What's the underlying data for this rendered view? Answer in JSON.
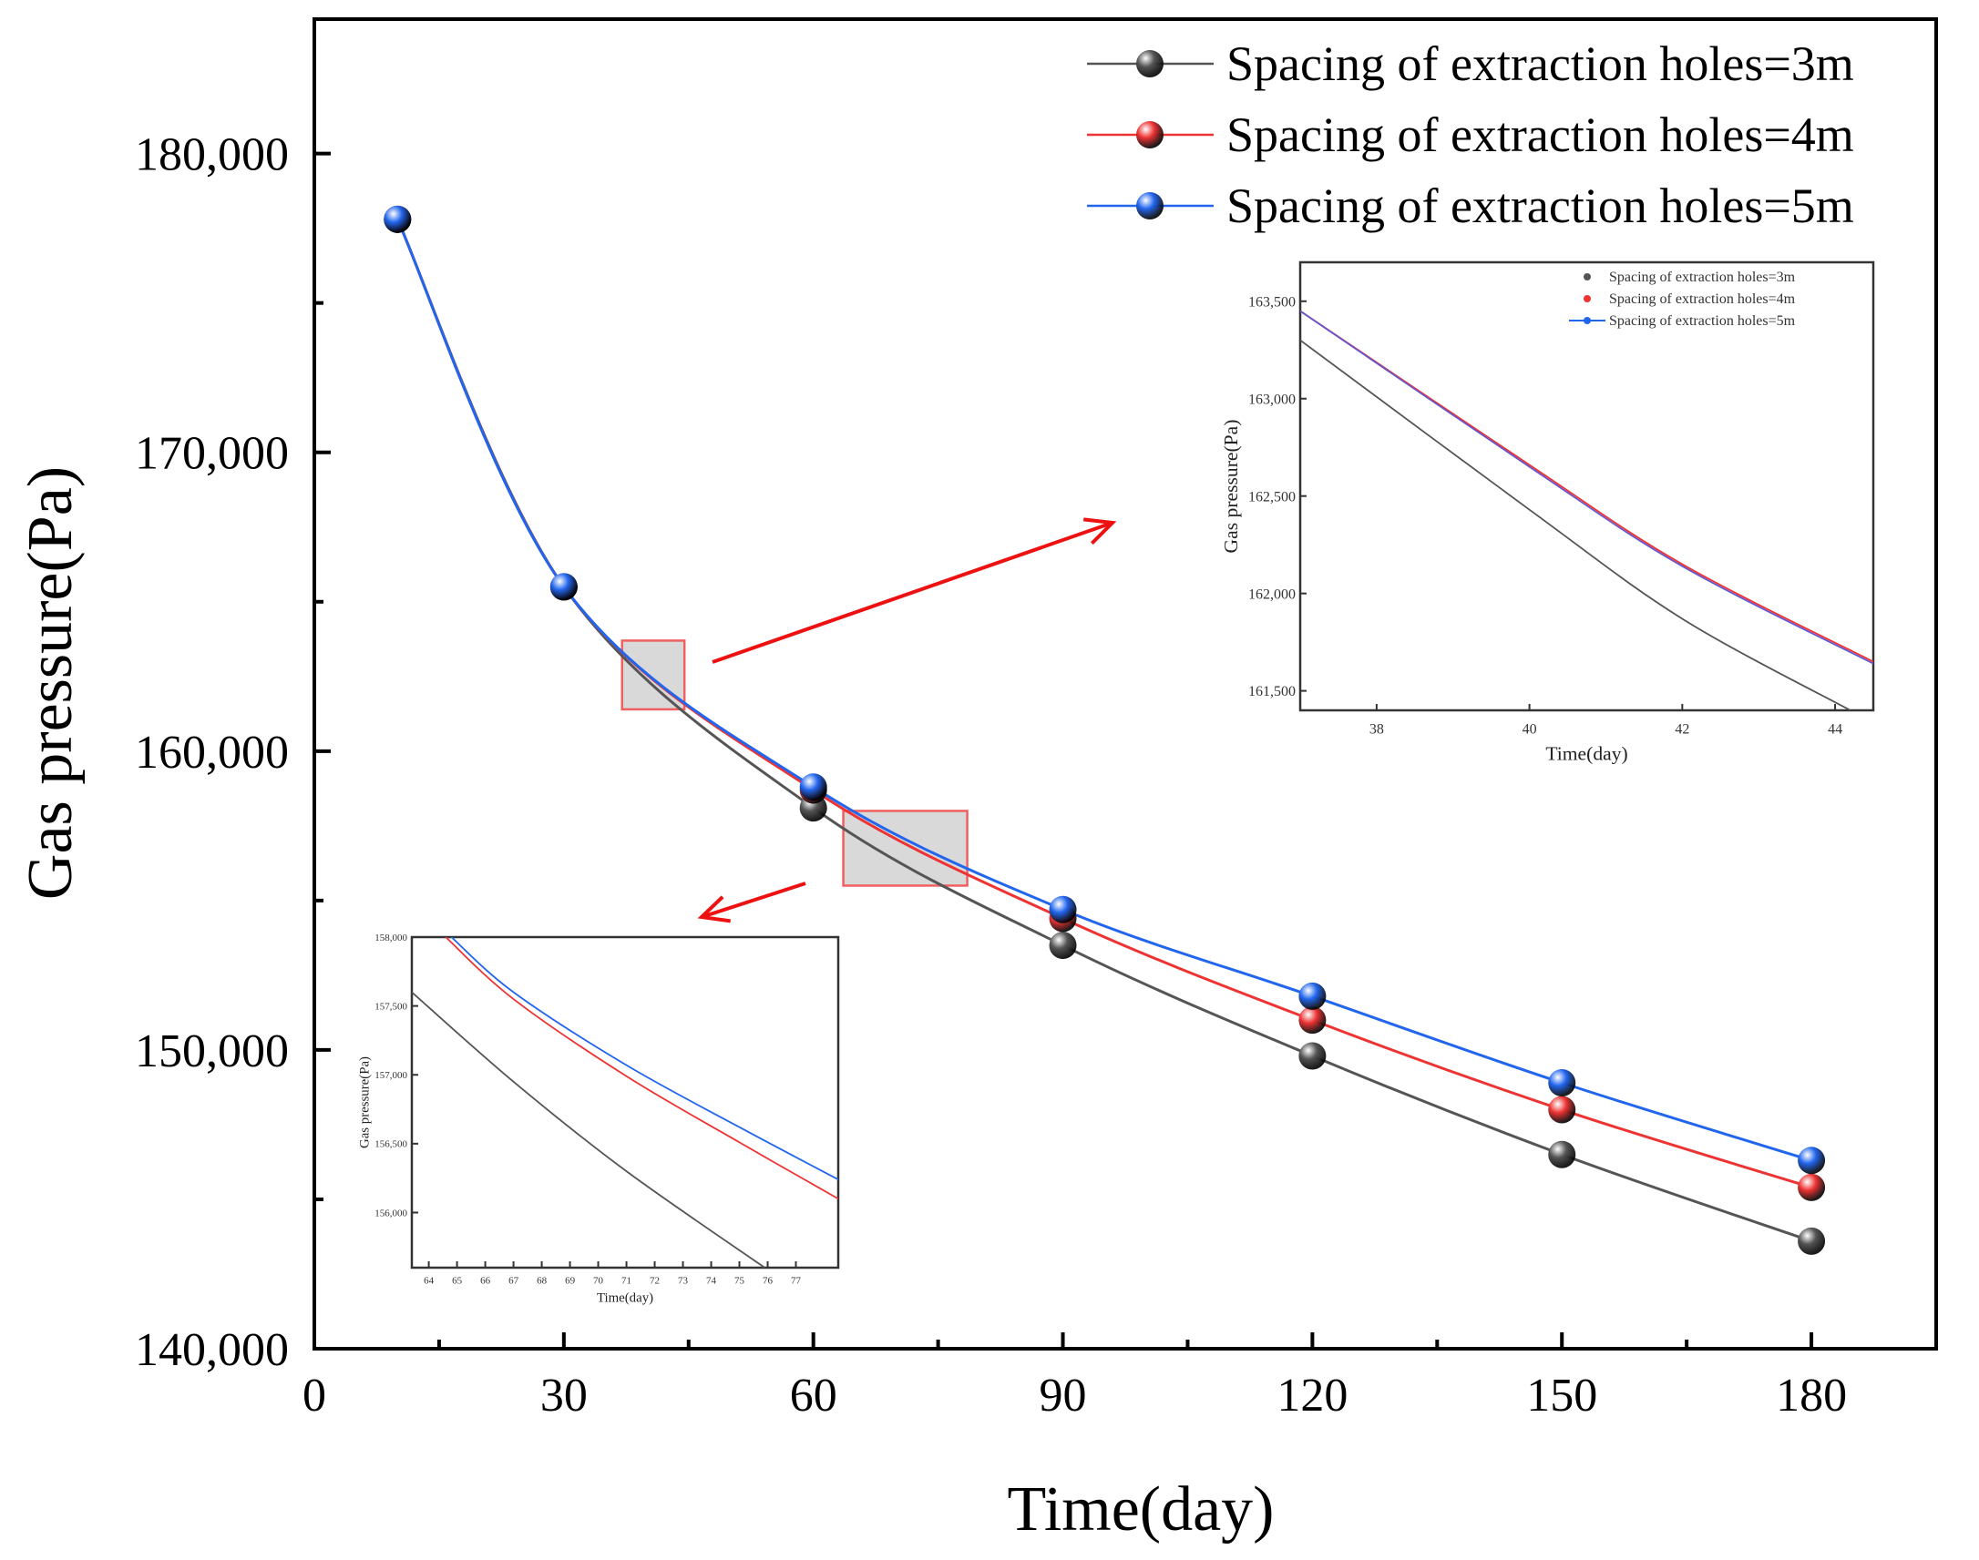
{
  "chart_data": {
    "type": "line",
    "xlabel": "Time(day)",
    "ylabel": "Gas pressure(Pa)",
    "xlim": [
      0,
      195
    ],
    "ylim": [
      140000,
      184500
    ],
    "xticks": [
      0,
      30,
      60,
      90,
      120,
      150,
      180
    ],
    "xtick_labels": [
      "0",
      "30",
      "60",
      "90",
      "120",
      "150",
      "180"
    ],
    "yticks": [
      140000,
      150000,
      160000,
      170000,
      180000
    ],
    "ytick_labels": [
      "140,000",
      "150,000",
      "160,000",
      "170,000",
      "180,000"
    ],
    "legend_position": "top-right",
    "x": [
      10,
      30,
      60,
      90,
      120,
      150,
      180
    ],
    "series": [
      {
        "name": "Spacing of extraction holes=3m",
        "color": "#555555",
        "values": [
          177800,
          165500,
          158100,
          153500,
          149800,
          146500,
          143600
        ]
      },
      {
        "name": "Spacing of extraction holes=4m",
        "color": "#ee3333",
        "values": [
          177800,
          165500,
          158700,
          154400,
          151000,
          148000,
          145400
        ]
      },
      {
        "name": "Spacing of extraction holes=5m",
        "color": "#2266ee",
        "values": [
          177800,
          165500,
          158800,
          154700,
          151800,
          148900,
          146300
        ]
      }
    ],
    "zoom_regions": [
      {
        "x": [
          37,
          44.5
        ],
        "y": [
          161400,
          163700
        ]
      },
      {
        "x": [
          63.6,
          78.5
        ],
        "y": [
          155500,
          158000
        ]
      }
    ],
    "insets": [
      {
        "xlabel": "Time(day)",
        "ylabel": "Gas pressure(Pa)",
        "xlim": [
          37,
          44.5
        ],
        "ylim": [
          161400,
          163700
        ],
        "xticks": [
          38,
          40,
          42,
          44
        ],
        "xtick_labels": [
          "38",
          "40",
          "42",
          "44"
        ],
        "yticks": [
          161500,
          162000,
          162500,
          163000,
          163500
        ],
        "ytick_labels": [
          "161,500",
          "162,000",
          "162,500",
          "163,000",
          "163,500"
        ],
        "legend": [
          "Spacing of extraction holes=3m",
          "Spacing of extraction holes=4m",
          "Spacing of extraction holes=5m"
        ],
        "series": [
          {
            "name": "3m",
            "color": "#555555",
            "x": [
              37,
              40,
              42,
              44.2
            ],
            "values": [
              163300,
              162430,
              161870,
              161400
            ]
          },
          {
            "name": "4m",
            "color": "#ee3333",
            "x": [
              37,
              40,
              42,
              44.5
            ],
            "values": [
              163450,
              162660,
              162150,
              161650
            ]
          },
          {
            "name": "5m",
            "color": "#6655cc",
            "x": [
              37,
              40,
              42,
              44.5
            ],
            "values": [
              163450,
              162650,
              162140,
              161640
            ]
          }
        ]
      },
      {
        "xlabel": "Time(day)",
        "ylabel": "Gas pressure(Pa)",
        "xlim": [
          63.4,
          78.5
        ],
        "ylim": [
          155600,
          158000
        ],
        "xticks": [
          64,
          65,
          66,
          67,
          68,
          69,
          70,
          71,
          72,
          73,
          74,
          75,
          76,
          77
        ],
        "xtick_labels": [
          "64",
          "65",
          "66",
          "67",
          "68",
          "69",
          "70",
          "71",
          "72",
          "73",
          "74",
          "75",
          "76",
          "77"
        ],
        "yticks": [
          156000,
          156500,
          157000,
          157500,
          158000
        ],
        "ytick_labels": [
          "156,000",
          "156,500",
          "157,000",
          "157,500",
          "158,000"
        ],
        "series": [
          {
            "name": "3m",
            "color": "#555555",
            "x": [
              63.4,
              67,
              71,
              75.9
            ],
            "values": [
              157600,
              156950,
              156300,
              155600
            ]
          },
          {
            "name": "4m",
            "color": "#ee3333",
            "x": [
              64.6,
              67,
              71,
              75,
              78.5
            ],
            "values": [
              158000,
              157550,
              156990,
              156510,
              156100
            ]
          },
          {
            "name": "5m",
            "color": "#2266ee",
            "x": [
              64.8,
              67,
              71,
              75,
              78.5
            ],
            "values": [
              158000,
              157600,
              157070,
              156620,
              156240
            ]
          }
        ]
      }
    ]
  }
}
